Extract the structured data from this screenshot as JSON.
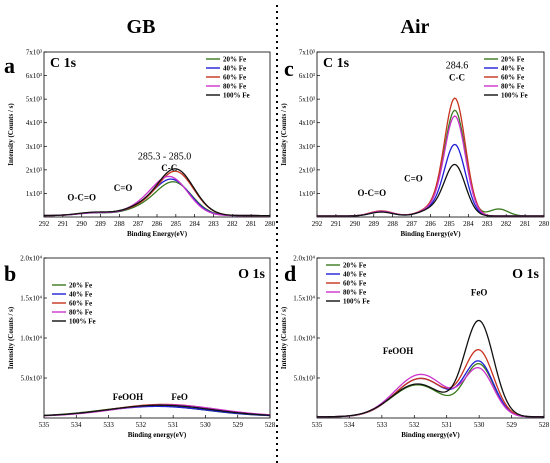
{
  "figure": {
    "col_left": "GB",
    "col_right": "Air"
  },
  "chart_data": [
    {
      "id": "a",
      "type": "line",
      "panel_letter": "a",
      "element_label": "C 1s",
      "xlabel": "Binding Energy(eV)",
      "ylabel": "Intensity (Counts / s)",
      "x_reversed": true,
      "xlim": [
        292,
        280
      ],
      "ylim": [
        0,
        7000
      ],
      "x_ticks": [
        292,
        291,
        290,
        289,
        288,
        287,
        286,
        285,
        284,
        283,
        282,
        281,
        280
      ],
      "x_tick_labels": [
        "292",
        "291",
        "290",
        "289",
        "288",
        "287",
        "286",
        "285",
        "284",
        "283",
        "282",
        "281",
        "280"
      ],
      "y_ticks": [
        1000,
        2000,
        3000,
        4000,
        5000,
        6000,
        7000
      ],
      "y_tick_labels": [
        "1x10³",
        "2x10³",
        "3x10³",
        "4x10³",
        "5x10³",
        "6x10³",
        "7x10³"
      ],
      "legend_position": "top-right",
      "annotations": [
        {
          "text": "285.3 - 285.0",
          "x": 285.6,
          "y": 2450,
          "cls": "anno-val"
        },
        {
          "text": "C-C",
          "x": 285.35,
          "y": 1950,
          "cls": "anno"
        },
        {
          "text": "C=O",
          "x": 287.8,
          "y": 1100,
          "cls": "anno"
        },
        {
          "text": "O-C=O",
          "x": 290.0,
          "y": 700,
          "cls": "anno"
        }
      ],
      "series": [
        {
          "name": "20% Fe",
          "color": "#3a7a1e",
          "peaks": [
            [
              285.1,
              1400,
              0.95
            ],
            [
              286.9,
              250,
              0.9
            ],
            [
              289.3,
              110,
              0.9
            ]
          ],
          "base": 60
        },
        {
          "name": "40% Fe",
          "color": "#1f1fd6",
          "peaks": [
            [
              285.2,
              1500,
              0.95
            ],
            [
              286.9,
              270,
              0.9
            ],
            [
              289.3,
              120,
              0.9
            ]
          ],
          "base": 60
        },
        {
          "name": "60% Fe",
          "color": "#c8321e",
          "peaks": [
            [
              285.0,
              1850,
              0.95
            ],
            [
              286.9,
              300,
              0.9
            ],
            [
              289.3,
              130,
              0.9
            ]
          ],
          "base": 60
        },
        {
          "name": "80% Fe",
          "color": "#cc33cc",
          "peaks": [
            [
              285.3,
              1600,
              0.95
            ],
            [
              286.9,
              280,
              0.9
            ],
            [
              289.3,
              120,
              0.9
            ]
          ],
          "base": 60
        },
        {
          "name": "100% Fe",
          "color": "#111111",
          "peaks": [
            [
              285.0,
              1950,
              0.95
            ],
            [
              286.9,
              320,
              0.9
            ],
            [
              289.3,
              140,
              0.9
            ]
          ],
          "base": 60
        }
      ]
    },
    {
      "id": "c",
      "type": "line",
      "panel_letter": "c",
      "element_label": "C 1s",
      "xlabel": "Binding Energy(eV)",
      "ylabel": "Intensity (Counts / s)",
      "x_reversed": true,
      "xlim": [
        292,
        280
      ],
      "ylim": [
        0,
        7000
      ],
      "x_ticks": [
        292,
        291,
        290,
        289,
        288,
        287,
        286,
        285,
        284,
        283,
        282,
        281,
        280
      ],
      "x_tick_labels": [
        "292",
        "291",
        "290",
        "289",
        "288",
        "287",
        "286",
        "285",
        "284",
        "283",
        "282",
        "281",
        "280"
      ],
      "y_ticks": [
        1000,
        2000,
        3000,
        4000,
        5000,
        6000,
        7000
      ],
      "y_tick_labels": [
        "1x10³",
        "2x10³",
        "3x10³",
        "4x10³",
        "5x10³",
        "6x10³",
        "7x10³"
      ],
      "legend_position": "top-right",
      "annotations": [
        {
          "text": "284.6",
          "x": 284.6,
          "y": 6300,
          "cls": "anno-val"
        },
        {
          "text": "C-C",
          "x": 284.6,
          "y": 5800,
          "cls": "anno"
        },
        {
          "text": "C=O",
          "x": 286.9,
          "y": 1500,
          "cls": "anno"
        },
        {
          "text": "O-C=O",
          "x": 289.1,
          "y": 900,
          "cls": "anno"
        }
      ],
      "series": [
        {
          "name": "20% Fe",
          "color": "#3a7a1e",
          "peaks": [
            [
              284.7,
              4400,
              0.55
            ],
            [
              285.8,
              300,
              0.7
            ],
            [
              288.6,
              200,
              0.6
            ],
            [
              282.4,
              300,
              0.5
            ]
          ],
          "base": 40
        },
        {
          "name": "40% Fe",
          "color": "#1f1fd6",
          "peaks": [
            [
              284.7,
              2950,
              0.55
            ],
            [
              285.8,
              300,
              0.7
            ],
            [
              288.6,
              180,
              0.6
            ]
          ],
          "base": 40
        },
        {
          "name": "60% Fe",
          "color": "#c8321e",
          "peaks": [
            [
              284.7,
              4900,
              0.55
            ],
            [
              285.8,
              350,
              0.7
            ],
            [
              288.6,
              220,
              0.6
            ]
          ],
          "base": 40
        },
        {
          "name": "80% Fe",
          "color": "#cc33cc",
          "peaks": [
            [
              284.7,
              4150,
              0.55
            ],
            [
              285.8,
              320,
              0.7
            ],
            [
              288.6,
              200,
              0.6
            ]
          ],
          "base": 40
        },
        {
          "name": "100% Fe",
          "color": "#111111",
          "peaks": [
            [
              284.7,
              2100,
              0.55
            ],
            [
              285.8,
              300,
              0.7
            ],
            [
              288.6,
              170,
              0.6
            ]
          ],
          "base": 40
        }
      ]
    },
    {
      "id": "b",
      "type": "line",
      "panel_letter": "b",
      "element_label": "O 1s",
      "xlabel": "Binding energy(eV)",
      "ylabel": "Intensity (Counts / s)",
      "x_reversed": true,
      "xlim": [
        535,
        528
      ],
      "ylim": [
        0,
        20000
      ],
      "x_ticks": [
        535,
        534,
        533,
        532,
        531,
        530,
        529,
        528
      ],
      "x_tick_labels": [
        "535",
        "534",
        "533",
        "532",
        "531",
        "530",
        "529",
        "528"
      ],
      "y_ticks": [
        5000,
        10000,
        15000,
        20000
      ],
      "y_tick_labels": [
        "5.0x10³",
        "1.0x10⁴",
        "1.5x10⁴",
        "2.0x10⁴"
      ],
      "legend_position": "top-left",
      "annotations": [
        {
          "text": "FeOOH",
          "x": 532.4,
          "y": 2250,
          "cls": "anno"
        },
        {
          "text": "FeO",
          "x": 530.8,
          "y": 2250,
          "cls": "anno"
        }
      ],
      "series": [
        {
          "name": "20% Fe",
          "color": "#3a7a1e",
          "peaks": [
            [
              531.6,
              1300,
              1.6
            ]
          ],
          "base": 200
        },
        {
          "name": "40% Fe",
          "color": "#1f1fd6",
          "peaks": [
            [
              531.5,
              1250,
              1.6
            ]
          ],
          "base": 200
        },
        {
          "name": "60% Fe",
          "color": "#c8321e",
          "peaks": [
            [
              531.3,
              1500,
              1.6
            ]
          ],
          "base": 200
        },
        {
          "name": "80% Fe",
          "color": "#cc33cc",
          "peaks": [
            [
              531.2,
              1450,
              1.6
            ]
          ],
          "base": 200
        },
        {
          "name": "100% Fe",
          "color": "#111111",
          "peaks": [
            [
              531.4,
              1400,
              1.6
            ]
          ],
          "base": 200
        }
      ]
    },
    {
      "id": "d",
      "type": "line",
      "panel_letter": "d",
      "element_label": "O 1s",
      "xlabel": "Binding energy(eV)",
      "ylabel": "Intensity (Counts / s)",
      "x_reversed": true,
      "xlim": [
        535,
        528
      ],
      "ylim": [
        0,
        20000
      ],
      "x_ticks": [
        535,
        534,
        533,
        532,
        531,
        530,
        529,
        528
      ],
      "x_tick_labels": [
        "535",
        "534",
        "533",
        "532",
        "531",
        "530",
        "529",
        "528"
      ],
      "y_ticks": [
        5000,
        10000,
        15000,
        20000
      ],
      "y_tick_labels": [
        "5.0x10³",
        "1.0x10⁴",
        "1.5x10⁴",
        "2.0x10⁴"
      ],
      "legend_position": "top-left",
      "annotations": [
        {
          "text": "FeO",
          "x": 530.0,
          "y": 15300,
          "cls": "anno"
        },
        {
          "text": "FeOOH",
          "x": 532.5,
          "y": 8000,
          "cls": "anno"
        }
      ],
      "series": [
        {
          "name": "20% Fe",
          "color": "#3a7a1e",
          "peaks": [
            [
              530.0,
              6400,
              0.45
            ],
            [
              531.9,
              4000,
              0.8
            ]
          ],
          "base": 150
        },
        {
          "name": "40% Fe",
          "color": "#1f1fd6",
          "peaks": [
            [
              530.0,
              6600,
              0.45
            ],
            [
              531.8,
              4800,
              0.8
            ]
          ],
          "base": 150
        },
        {
          "name": "60% Fe",
          "color": "#c8321e",
          "peaks": [
            [
              530.0,
              8000,
              0.45
            ],
            [
              531.8,
              4800,
              0.8
            ]
          ],
          "base": 150
        },
        {
          "name": "80% Fe",
          "color": "#cc33cc",
          "peaks": [
            [
              530.0,
              5700,
              0.45
            ],
            [
              531.8,
              5300,
              0.8
            ]
          ],
          "base": 150
        },
        {
          "name": "100% Fe",
          "color": "#111111",
          "peaks": [
            [
              530.0,
              11800,
              0.45
            ],
            [
              531.9,
              4100,
              0.8
            ]
          ],
          "base": 150
        }
      ]
    }
  ]
}
